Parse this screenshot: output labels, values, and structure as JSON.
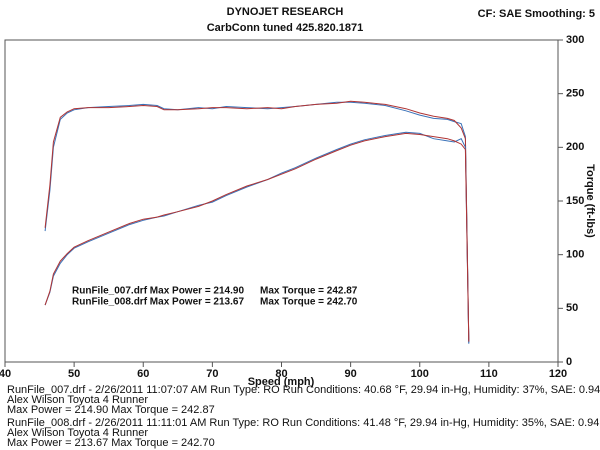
{
  "chart_data": {
    "type": "line",
    "title": "DYNOJET RESEARCH",
    "subtitle": "CarbConn tuned   425.820.1871",
    "settings_note": "CF: SAE  Smoothing: 5",
    "xlabel": "Speed (mph)",
    "ylabel": "Torque (ft-lbs)",
    "annotations": [
      [
        "RunFile_007.drf Max Power = 214.90",
        "Max Torque = 242.87"
      ],
      [
        "RunFile_008.drf Max Power = 213.67",
        "Max Torque = 242.70"
      ]
    ],
    "x": [
      45.8,
      46.5,
      47,
      48,
      49,
      50,
      52,
      55,
      58,
      60,
      62,
      63,
      65,
      68,
      70,
      72,
      75,
      78,
      80,
      82,
      85,
      88,
      90,
      92,
      95,
      98,
      100,
      102,
      104,
      105,
      106,
      106.6,
      107.1
    ],
    "series": [
      {
        "color": "#3a72b8",
        "values": [
          122,
          160,
          200,
          226,
          232,
          235,
          237,
          238,
          239,
          240,
          239,
          236,
          235,
          237,
          236,
          238,
          237,
          236,
          237,
          238,
          240,
          242,
          242,
          241,
          239,
          234,
          230,
          227,
          226,
          224,
          222,
          210,
          18
        ]
      },
      {
        "color": "#b03434",
        "values": [
          125,
          165,
          205,
          228,
          233,
          236,
          237,
          237,
          238,
          239,
          238,
          235,
          235,
          236,
          237,
          237,
          236,
          237,
          236,
          238,
          240,
          241,
          243,
          242,
          240,
          236,
          232,
          229,
          227,
          225,
          218,
          208,
          20
        ]
      },
      {
        "color": "#3a72b8",
        "values": [
          53,
          65,
          80,
          92,
          100,
          106,
          112,
          120,
          128,
          132,
          135,
          136,
          140,
          146,
          149,
          155,
          163,
          170,
          176,
          181,
          190,
          198,
          203,
          207,
          211,
          214,
          213,
          208,
          206,
          205,
          208,
          200,
          17
        ]
      },
      {
        "color": "#b03434",
        "values": [
          53,
          66,
          82,
          94,
          101,
          107,
          113,
          121,
          129,
          133,
          135,
          137,
          140,
          145,
          150,
          156,
          164,
          170,
          175,
          180,
          189,
          197,
          202,
          206,
          210,
          213,
          212,
          210,
          208,
          206,
          203,
          198,
          19
        ]
      }
    ],
    "xlim": [
      40,
      120
    ],
    "xticks": [
      40,
      50,
      60,
      70,
      80,
      90,
      100,
      110,
      120
    ],
    "ylim": [
      0,
      300
    ],
    "yticks": [
      0,
      50,
      100,
      150,
      200,
      250,
      300
    ],
    "grid": false,
    "run_info": [
      {
        "color": "#2a5f9a",
        "lines": [
          "RunFile_007.drf - 2/26/2011 11:07:07 AM  Run Type: RO  Run Conditions: 40.68 °F, 29.94 in-Hg,  Humidity:  37%, SAE: 0.94",
          "Alex Wilson Toyota 4 Runner",
          "Max Power = 214.90  Max Torque = 242.87"
        ]
      },
      {
        "color": "#a02a2a",
        "lines": [
          "RunFile_008.drf - 2/26/2011 11:11:01 AM  Run Type: RO  Run Conditions: 41.48 °F, 29.94 in-Hg,  Humidity:  35%, SAE: 0.94",
          "Alex Wilson Toyota 4 Runner",
          "Max Power = 213.67  Max Torque = 242.70"
        ]
      }
    ]
  }
}
